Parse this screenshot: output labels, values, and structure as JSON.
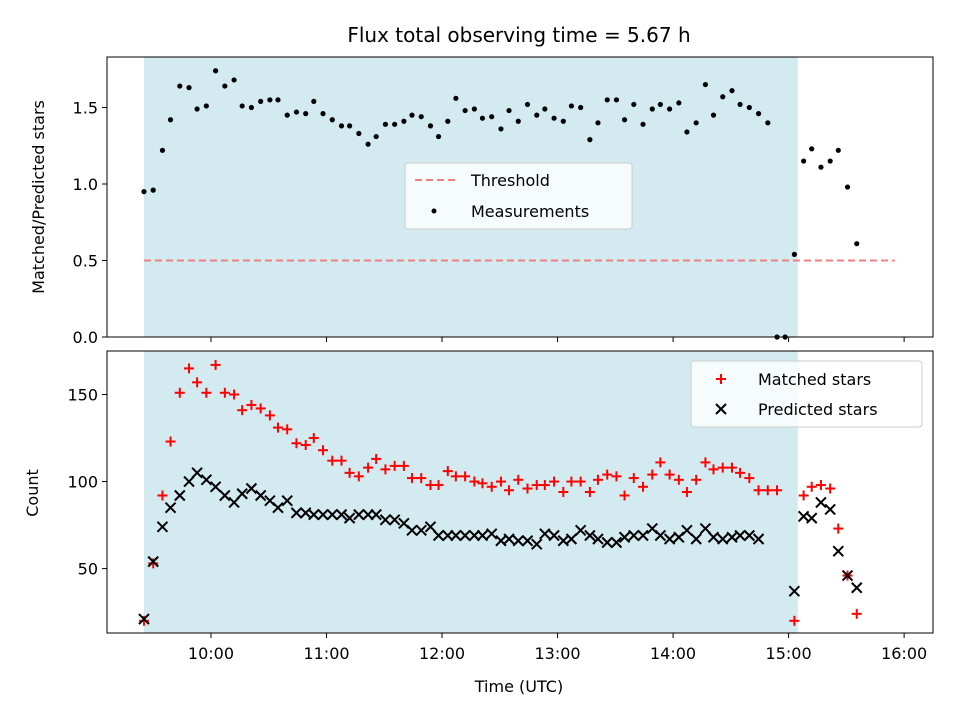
{
  "chart_data": {
    "title": "Flux total observing time = 5.67 h",
    "xlabel": "Time (UTC)",
    "x_ticks": [
      "10:00",
      "11:00",
      "12:00",
      "13:00",
      "14:00",
      "15:00",
      "16:00"
    ],
    "x_tick_hours": [
      10,
      11,
      12,
      13,
      14,
      15,
      16
    ],
    "xlim": [
      9.1,
      16.25
    ],
    "shaded_span": [
      9.42,
      15.08
    ],
    "shade_color": "#d3eaf0",
    "top": {
      "type": "scatter",
      "ylabel": "Matched/Predicted stars",
      "ylim": [
        0,
        1.83
      ],
      "y_ticks": [
        "0.0",
        "0.5",
        "1.0",
        "1.5"
      ],
      "y_tick_values": [
        0,
        0.5,
        1.0,
        1.5
      ],
      "threshold": {
        "name": "Threshold",
        "value": 0.5,
        "x_range": [
          9.42,
          15.92
        ],
        "color": "#f08080"
      },
      "measurements_name": "Measurements",
      "measurements": [
        [
          9.42,
          0.95
        ],
        [
          9.5,
          0.96
        ],
        [
          9.58,
          1.22
        ],
        [
          9.65,
          1.42
        ],
        [
          9.73,
          1.64
        ],
        [
          9.81,
          1.63
        ],
        [
          9.88,
          1.49
        ],
        [
          9.96,
          1.51
        ],
        [
          10.04,
          1.74
        ],
        [
          10.12,
          1.64
        ],
        [
          10.2,
          1.68
        ],
        [
          10.27,
          1.51
        ],
        [
          10.35,
          1.5
        ],
        [
          10.43,
          1.54
        ],
        [
          10.51,
          1.55
        ],
        [
          10.58,
          1.55
        ],
        [
          10.66,
          1.45
        ],
        [
          10.74,
          1.47
        ],
        [
          10.82,
          1.46
        ],
        [
          10.89,
          1.54
        ],
        [
          10.97,
          1.46
        ],
        [
          11.05,
          1.42
        ],
        [
          11.13,
          1.38
        ],
        [
          11.2,
          1.38
        ],
        [
          11.28,
          1.33
        ],
        [
          11.36,
          1.26
        ],
        [
          11.43,
          1.31
        ],
        [
          11.51,
          1.39
        ],
        [
          11.59,
          1.39
        ],
        [
          11.67,
          1.41
        ],
        [
          11.74,
          1.45
        ],
        [
          11.82,
          1.44
        ],
        [
          11.9,
          1.38
        ],
        [
          11.97,
          1.31
        ],
        [
          12.05,
          1.41
        ],
        [
          12.12,
          1.56
        ],
        [
          12.2,
          1.48
        ],
        [
          12.28,
          1.49
        ],
        [
          12.35,
          1.43
        ],
        [
          12.43,
          1.44
        ],
        [
          12.51,
          1.36
        ],
        [
          12.58,
          1.48
        ],
        [
          12.66,
          1.41
        ],
        [
          12.74,
          1.52
        ],
        [
          12.82,
          1.45
        ],
        [
          12.89,
          1.49
        ],
        [
          12.97,
          1.43
        ],
        [
          13.05,
          1.41
        ],
        [
          13.12,
          1.51
        ],
        [
          13.2,
          1.5
        ],
        [
          13.28,
          1.29
        ],
        [
          13.35,
          1.4
        ],
        [
          13.43,
          1.55
        ],
        [
          13.51,
          1.55
        ],
        [
          13.58,
          1.42
        ],
        [
          13.66,
          1.52
        ],
        [
          13.74,
          1.39
        ],
        [
          13.82,
          1.49
        ],
        [
          13.89,
          1.52
        ],
        [
          13.97,
          1.49
        ],
        [
          14.05,
          1.53
        ],
        [
          14.12,
          1.34
        ],
        [
          14.2,
          1.4
        ],
        [
          14.28,
          1.65
        ],
        [
          14.35,
          1.45
        ],
        [
          14.43,
          1.57
        ],
        [
          14.51,
          1.61
        ],
        [
          14.58,
          1.52
        ],
        [
          14.66,
          1.5
        ],
        [
          14.74,
          1.46
        ],
        [
          14.82,
          1.4
        ],
        [
          14.9,
          0.0
        ],
        [
          14.97,
          0.0
        ],
        [
          15.05,
          0.54
        ],
        [
          15.13,
          1.15
        ],
        [
          15.2,
          1.23
        ],
        [
          15.28,
          1.11
        ],
        [
          15.36,
          1.15
        ],
        [
          15.43,
          1.22
        ],
        [
          15.51,
          0.98
        ],
        [
          15.59,
          0.61
        ]
      ],
      "legend": [
        "Threshold",
        "Measurements"
      ]
    },
    "bottom": {
      "type": "scatter",
      "ylabel": "Count",
      "ylim": [
        13,
        175
      ],
      "y_ticks": [
        "50",
        "100",
        "150"
      ],
      "y_tick_values": [
        50,
        100,
        150
      ],
      "series": [
        {
          "name": "Matched stars",
          "marker": "plus",
          "color": "#ff0000",
          "points": [
            [
              9.42,
              20
            ],
            [
              9.5,
              53
            ],
            [
              9.58,
              92
            ],
            [
              9.65,
              123
            ],
            [
              9.73,
              151
            ],
            [
              9.81,
              165
            ],
            [
              9.88,
              157
            ],
            [
              9.96,
              151
            ],
            [
              10.04,
              167
            ],
            [
              10.12,
              151
            ],
            [
              10.2,
              150
            ],
            [
              10.27,
              141
            ],
            [
              10.35,
              144
            ],
            [
              10.43,
              142
            ],
            [
              10.51,
              138
            ],
            [
              10.58,
              131
            ],
            [
              10.66,
              130
            ],
            [
              10.74,
              122
            ],
            [
              10.82,
              121
            ],
            [
              10.89,
              125
            ],
            [
              10.97,
              118
            ],
            [
              11.05,
              112
            ],
            [
              11.13,
              112
            ],
            [
              11.2,
              105
            ],
            [
              11.28,
              103
            ],
            [
              11.36,
              108
            ],
            [
              11.43,
              113
            ],
            [
              11.51,
              107
            ],
            [
              11.59,
              109
            ],
            [
              11.67,
              109
            ],
            [
              11.74,
              102
            ],
            [
              11.82,
              102
            ],
            [
              11.9,
              98
            ],
            [
              11.97,
              98
            ],
            [
              12.05,
              106
            ],
            [
              12.12,
              103
            ],
            [
              12.2,
              103
            ],
            [
              12.28,
              100
            ],
            [
              12.35,
              99
            ],
            [
              12.43,
              97
            ],
            [
              12.51,
              100
            ],
            [
              12.58,
              95
            ],
            [
              12.66,
              101
            ],
            [
              12.74,
              96
            ],
            [
              12.82,
              98
            ],
            [
              12.89,
              98
            ],
            [
              12.97,
              100
            ],
            [
              13.05,
              94
            ],
            [
              13.12,
              100
            ],
            [
              13.2,
              100
            ],
            [
              13.28,
              94
            ],
            [
              13.35,
              101
            ],
            [
              13.43,
              104
            ],
            [
              13.51,
              103
            ],
            [
              13.58,
              92
            ],
            [
              13.66,
              102
            ],
            [
              13.74,
              97
            ],
            [
              13.82,
              104
            ],
            [
              13.89,
              111
            ],
            [
              13.97,
              104
            ],
            [
              14.05,
              101
            ],
            [
              14.12,
              94
            ],
            [
              14.2,
              101
            ],
            [
              14.28,
              111
            ],
            [
              14.35,
              107
            ],
            [
              14.43,
              108
            ],
            [
              14.51,
              108
            ],
            [
              14.58,
              105
            ],
            [
              14.66,
              102
            ],
            [
              14.74,
              95
            ],
            [
              14.82,
              95
            ],
            [
              14.9,
              95
            ],
            [
              15.05,
              20
            ],
            [
              15.13,
              92
            ],
            [
              15.2,
              97
            ],
            [
              15.28,
              98
            ],
            [
              15.36,
              96
            ],
            [
              15.43,
              73
            ],
            [
              15.51,
              46
            ],
            [
              15.59,
              24
            ]
          ]
        },
        {
          "name": "Predicted stars",
          "marker": "x",
          "color": "#000000",
          "points": [
            [
              9.42,
              21
            ],
            [
              9.5,
              54
            ],
            [
              9.58,
              74
            ],
            [
              9.65,
              85
            ],
            [
              9.73,
              92
            ],
            [
              9.81,
              100
            ],
            [
              9.88,
              105
            ],
            [
              9.96,
              101
            ],
            [
              10.04,
              97
            ],
            [
              10.12,
              92
            ],
            [
              10.2,
              88
            ],
            [
              10.27,
              93
            ],
            [
              10.35,
              96
            ],
            [
              10.43,
              92
            ],
            [
              10.51,
              89
            ],
            [
              10.58,
              85
            ],
            [
              10.66,
              89
            ],
            [
              10.74,
              82
            ],
            [
              10.82,
              82
            ],
            [
              10.89,
              81
            ],
            [
              10.97,
              81
            ],
            [
              11.05,
              81
            ],
            [
              11.13,
              81
            ],
            [
              11.2,
              79
            ],
            [
              11.28,
              81
            ],
            [
              11.36,
              81
            ],
            [
              11.43,
              81
            ],
            [
              11.51,
              78
            ],
            [
              11.59,
              78
            ],
            [
              11.67,
              76
            ],
            [
              11.74,
              72
            ],
            [
              11.82,
              72
            ],
            [
              11.9,
              74
            ],
            [
              11.97,
              69
            ],
            [
              12.05,
              69
            ],
            [
              12.12,
              69
            ],
            [
              12.2,
              69
            ],
            [
              12.28,
              69
            ],
            [
              12.35,
              69
            ],
            [
              12.43,
              70
            ],
            [
              12.51,
              66
            ],
            [
              12.58,
              67
            ],
            [
              12.66,
              66
            ],
            [
              12.74,
              66
            ],
            [
              12.82,
              64
            ],
            [
              12.89,
              70
            ],
            [
              12.97,
              69
            ],
            [
              13.05,
              66
            ],
            [
              13.12,
              67
            ],
            [
              13.2,
              72
            ],
            [
              13.28,
              69
            ],
            [
              13.35,
              67
            ],
            [
              13.43,
              65
            ],
            [
              13.51,
              65
            ],
            [
              13.58,
              68
            ],
            [
              13.66,
              69
            ],
            [
              13.74,
              69
            ],
            [
              13.82,
              73
            ],
            [
              13.89,
              69
            ],
            [
              13.97,
              67
            ],
            [
              14.05,
              68
            ],
            [
              14.12,
              72
            ],
            [
              14.2,
              67
            ],
            [
              14.28,
              73
            ],
            [
              14.35,
              68
            ],
            [
              14.43,
              67
            ],
            [
              14.51,
              68
            ],
            [
              14.58,
              69
            ],
            [
              14.66,
              69
            ],
            [
              14.74,
              67
            ],
            [
              15.05,
              37
            ],
            [
              15.13,
              80
            ],
            [
              15.2,
              79
            ],
            [
              15.28,
              88
            ],
            [
              15.36,
              84
            ],
            [
              15.43,
              60
            ],
            [
              15.51,
              46
            ],
            [
              15.59,
              39
            ]
          ]
        }
      ],
      "legend": [
        "Matched stars",
        "Predicted stars"
      ]
    }
  }
}
